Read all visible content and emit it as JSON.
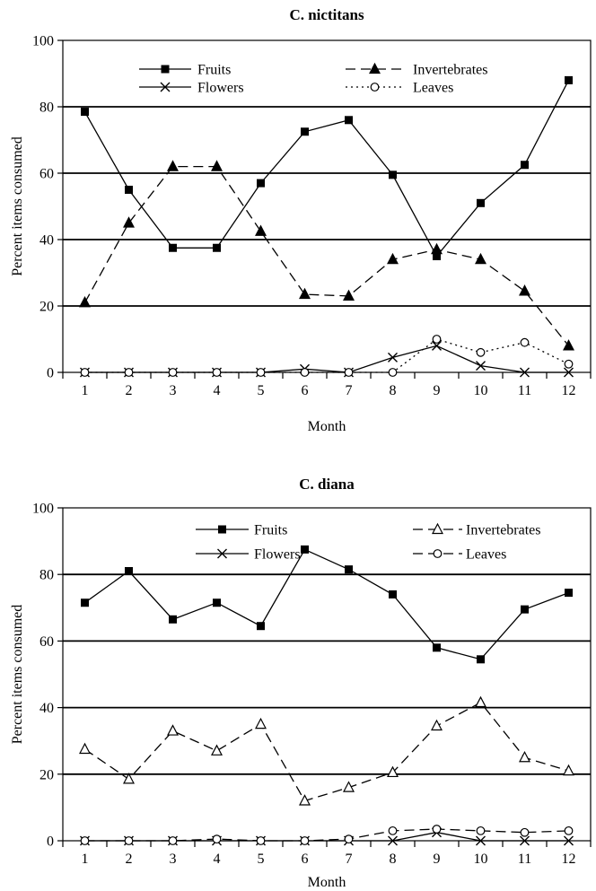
{
  "chart_data": [
    {
      "type": "line",
      "title": "C. nictitans",
      "xlabel": "Month",
      "ylabel": "Percent items consumed",
      "categories": [
        "1",
        "2",
        "3",
        "4",
        "5",
        "6",
        "7",
        "8",
        "9",
        "10",
        "11",
        "12"
      ],
      "ylim": [
        0,
        100
      ],
      "yticks": [
        "0",
        "20",
        "40",
        "60",
        "80",
        "100"
      ],
      "grid": "horizontal",
      "legend": "top",
      "series": [
        {
          "name": "Fruits",
          "marker": "square-filled",
          "dash": "solid",
          "values": [
            78.5,
            55,
            37.5,
            37.5,
            57,
            72.5,
            76,
            59.5,
            35,
            51,
            62.5,
            88
          ]
        },
        {
          "name": "Invertebrates",
          "marker": "triangle-filled",
          "dash": "dashed",
          "values": [
            21,
            45,
            62,
            62,
            42.5,
            23.5,
            23,
            34,
            37,
            34,
            24.5,
            8
          ]
        },
        {
          "name": "Flowers",
          "marker": "cross",
          "dash": "solid",
          "values": [
            0,
            0,
            0,
            0,
            0,
            1,
            0,
            4.5,
            8,
            2,
            0,
            0
          ]
        },
        {
          "name": "Leaves",
          "marker": "circle-open",
          "dash": "dotted",
          "values": [
            0,
            0,
            0,
            0,
            0,
            0,
            0,
            0,
            10,
            6,
            9,
            2.5
          ]
        }
      ]
    },
    {
      "type": "line",
      "title": "C. diana",
      "xlabel": "Month",
      "ylabel": "Percent items consumed",
      "categories": [
        "1",
        "2",
        "3",
        "4",
        "5",
        "6",
        "7",
        "8",
        "9",
        "10",
        "11",
        "12"
      ],
      "ylim": [
        0,
        100
      ],
      "yticks": [
        "0",
        "20",
        "40",
        "60",
        "80",
        "100"
      ],
      "grid": "horizontal",
      "legend": "top",
      "series": [
        {
          "name": "Fruits",
          "marker": "square-filled",
          "dash": "solid",
          "values": [
            71.5,
            81,
            66.5,
            71.5,
            64.5,
            87.5,
            81.5,
            74,
            58,
            54.5,
            69.5,
            74.5
          ]
        },
        {
          "name": "Invertebrates",
          "marker": "triangle-open",
          "dash": "dashed",
          "values": [
            27.5,
            18.5,
            33,
            27,
            35,
            12,
            16,
            20.5,
            34.5,
            41.5,
            25,
            21
          ]
        },
        {
          "name": "Flowers",
          "marker": "cross",
          "dash": "solid",
          "values": [
            0,
            0,
            0,
            0,
            0,
            0,
            0,
            0,
            2.5,
            0,
            0,
            0
          ]
        },
        {
          "name": "Leaves",
          "marker": "circle-open",
          "dash": "dashed",
          "values": [
            0,
            0,
            0,
            0.5,
            0,
            0,
            0.5,
            3,
            3.5,
            3,
            2.5,
            3
          ]
        }
      ]
    }
  ]
}
